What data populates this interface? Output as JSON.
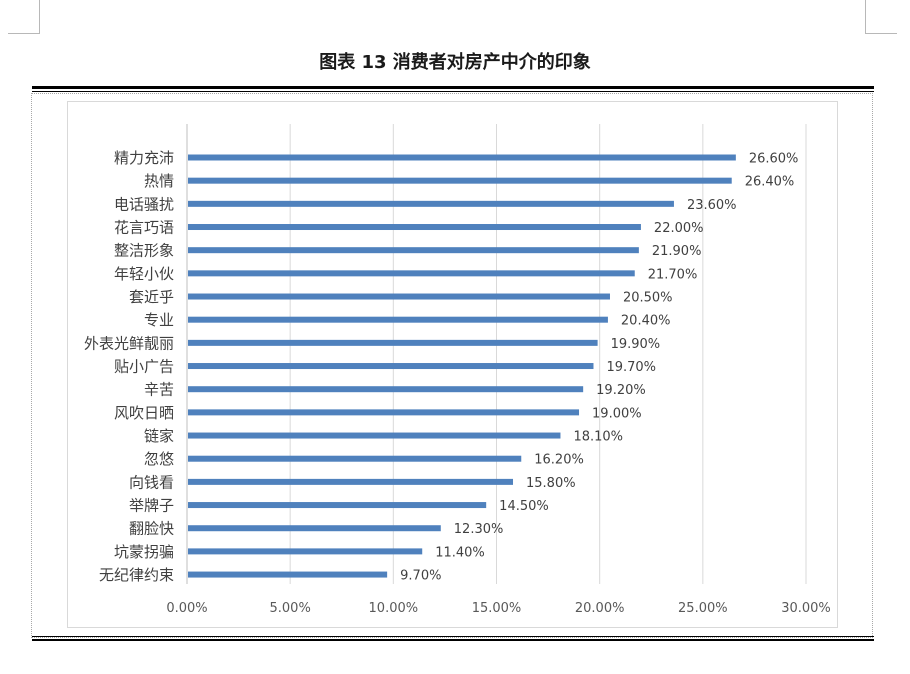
{
  "document": {
    "title": "图表 13  消费者对房产中介的印象"
  },
  "chart_data": {
    "type": "bar",
    "orientation": "horizontal",
    "title": "",
    "xlabel": "",
    "ylabel": "",
    "categories": [
      "精力充沛",
      "热情",
      "电话骚扰",
      "花言巧语",
      "整洁形象",
      "年轻小伙",
      "套近乎",
      "专业",
      "外表光鲜靓丽",
      "贴小广告",
      "辛苦",
      "风吹日晒",
      "链家",
      "忽悠",
      "向钱看",
      "举牌子",
      "翻脸快",
      "坑蒙拐骗",
      "无纪律约束"
    ],
    "values": [
      26.6,
      26.4,
      23.6,
      22.0,
      21.9,
      21.7,
      20.5,
      20.4,
      19.9,
      19.7,
      19.2,
      19.0,
      18.1,
      16.2,
      15.8,
      14.5,
      12.3,
      11.4,
      9.7
    ],
    "value_labels": [
      "26.60%",
      "26.40%",
      "23.60%",
      "22.00%",
      "21.90%",
      "21.70%",
      "20.50%",
      "20.40%",
      "19.90%",
      "19.70%",
      "19.20%",
      "19.00%",
      "18.10%",
      "16.20%",
      "15.80%",
      "14.50%",
      "12.30%",
      "11.40%",
      "9.70%"
    ],
    "xlim": [
      0,
      30
    ],
    "xticks": [
      0,
      5,
      10,
      15,
      20,
      25,
      30
    ],
    "xtick_labels": [
      "0.00%",
      "5.00%",
      "10.00%",
      "15.00%",
      "20.00%",
      "25.00%",
      "30.00%"
    ],
    "grid": "vertical",
    "legend": "none",
    "colors": {
      "bar": "#4f81bd",
      "grid": "#d9d9d9",
      "text": "#404040",
      "label": "#595959"
    }
  }
}
